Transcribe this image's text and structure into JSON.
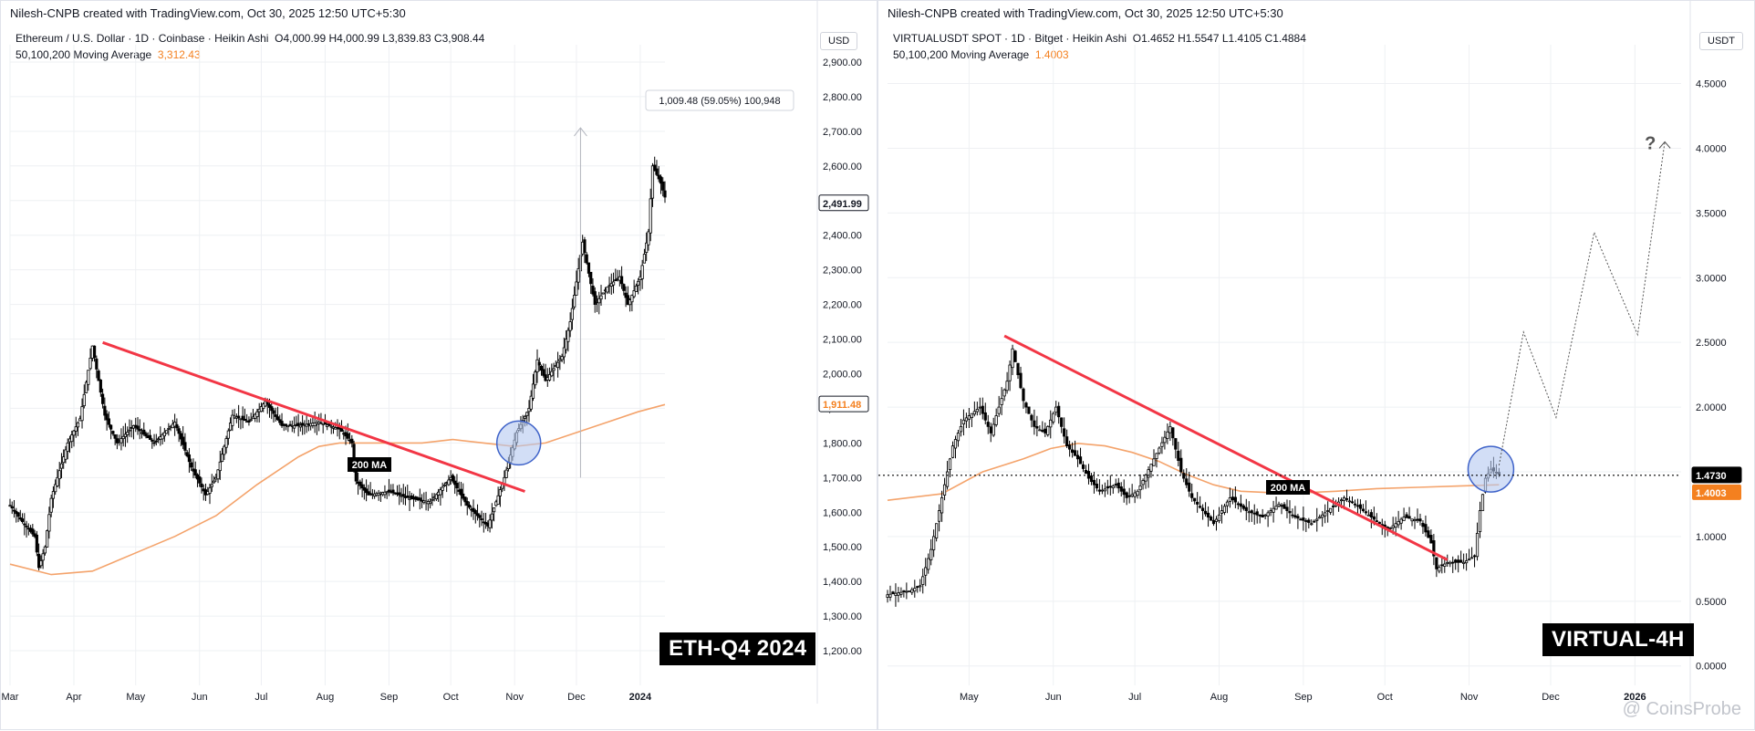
{
  "colors": {
    "candle": "#000000",
    "trendline": "#f23645",
    "ma": "#f4a36b",
    "circle_fill": "#b4c8f0",
    "circle_stroke": "#3f63c9",
    "grid": "#eef0f3",
    "axis_text": "#131722"
  },
  "watermark": "@ CoinsProbe",
  "chart_data": [
    {
      "type": "candlestick",
      "credit": "Nilesh-CNPB created with TradingView.com, Oct 30, 2025 12:50 UTC+5:30",
      "title": "Ethereum / U.S. Dollar · 1D · Coinbase · Heikin Ashi",
      "ohlc": "O4,000.99 H4,000.99 L3,839.83 C3,908.44",
      "ma_label": "50,100,200 Moving Average",
      "ma_value": "3,312.43",
      "currency": "USD",
      "corner_label": "ETH-Q4 2024",
      "annotation_label": "200 MA",
      "measure_label": "1,009.48 (59.05%) 100,948",
      "price_tag": "2,491.99",
      "ma_tag": "1,911.48",
      "ylim": [
        1100,
        2950
      ],
      "y_ticks": [
        1200,
        1300,
        1400,
        1500,
        1600,
        1700,
        1800,
        1900,
        2000,
        2100,
        2200,
        2300,
        2400,
        2500,
        2600,
        2700,
        2800,
        2900
      ],
      "y_tick_labels": [
        "1,200.00",
        "1,300.00",
        "1,400.00",
        "1,500.00",
        "1,600.00",
        "1,700.00",
        "1,800.00",
        "1,900.00",
        "2,000.00",
        "2,100.00",
        "2,200.00",
        "2,300.00",
        "2,400.00",
        "2,500.00",
        "2,600.00",
        "2,700.00",
        "2,800.00",
        "2,900.00"
      ],
      "x_labels": [
        "Mar",
        "Apr",
        "May",
        "Jun",
        "Jul",
        "Aug",
        "Sep",
        "Oct",
        "Nov",
        "Dec",
        "2024"
      ],
      "x_label_days": [
        0,
        31,
        61,
        92,
        122,
        153,
        184,
        214,
        245,
        275,
        306
      ],
      "x_domain": [
        0,
        318
      ],
      "price_path": [
        [
          0,
          1620
        ],
        [
          5,
          1580
        ],
        [
          12,
          1530
        ],
        [
          14,
          1440
        ],
        [
          17,
          1500
        ],
        [
          20,
          1640
        ],
        [
          28,
          1800
        ],
        [
          34,
          1870
        ],
        [
          40,
          2080
        ],
        [
          46,
          1880
        ],
        [
          52,
          1800
        ],
        [
          60,
          1850
        ],
        [
          70,
          1800
        ],
        [
          80,
          1860
        ],
        [
          88,
          1730
        ],
        [
          95,
          1650
        ],
        [
          100,
          1700
        ],
        [
          108,
          1880
        ],
        [
          116,
          1860
        ],
        [
          124,
          1920
        ],
        [
          132,
          1850
        ],
        [
          140,
          1850
        ],
        [
          150,
          1860
        ],
        [
          160,
          1840
        ],
        [
          166,
          1800
        ],
        [
          168,
          1690
        ],
        [
          174,
          1650
        ],
        [
          184,
          1660
        ],
        [
          194,
          1640
        ],
        [
          204,
          1630
        ],
        [
          214,
          1700
        ],
        [
          222,
          1620
        ],
        [
          232,
          1560
        ],
        [
          240,
          1700
        ],
        [
          246,
          1830
        ],
        [
          252,
          1900
        ],
        [
          256,
          2040
        ],
        [
          260,
          1980
        ],
        [
          268,
          2050
        ],
        [
          272,
          2150
        ],
        [
          278,
          2380
        ],
        [
          284,
          2200
        ],
        [
          290,
          2250
        ],
        [
          296,
          2280
        ],
        [
          300,
          2200
        ],
        [
          306,
          2280
        ],
        [
          310,
          2410
        ],
        [
          312,
          2600
        ],
        [
          316,
          2550
        ],
        [
          318,
          2510
        ]
      ],
      "ma_200": [
        [
          0,
          1450
        ],
        [
          20,
          1420
        ],
        [
          40,
          1430
        ],
        [
          60,
          1480
        ],
        [
          80,
          1530
        ],
        [
          100,
          1590
        ],
        [
          120,
          1680
        ],
        [
          140,
          1760
        ],
        [
          150,
          1790
        ],
        [
          160,
          1800
        ],
        [
          180,
          1800
        ],
        [
          200,
          1800
        ],
        [
          215,
          1810
        ],
        [
          230,
          1800
        ],
        [
          245,
          1790
        ],
        [
          260,
          1800
        ],
        [
          275,
          1830
        ],
        [
          290,
          1860
        ],
        [
          305,
          1890
        ],
        [
          318,
          1911
        ]
      ],
      "trendline": [
        [
          45,
          2090
        ],
        [
          250,
          1660
        ]
      ],
      "circle": {
        "day": 247,
        "price": 1800,
        "r": 24
      },
      "measure": {
        "day": 277,
        "from": 1700,
        "to": 2710
      }
    },
    {
      "type": "candlestick",
      "credit": "Nilesh-CNPB created with TradingView.com, Oct 30, 2025 12:50 UTC+5:30",
      "title": "VIRTUALUSDT SPOT · 1D · Bitget · Heikin Ashi",
      "ohlc": "O1.4652 H1.5547 L1.4105 C1.4884",
      "ma_label": "50,100,200 Moving Average",
      "ma_value": "1.4003",
      "currency": "USDT",
      "corner_label": "VIRTUAL-4H",
      "annotation_label": "200 MA",
      "question_mark": "?",
      "price_tag": "1.4730",
      "ma_tag": "1.4003",
      "ylim": [
        -0.15,
        4.8
      ],
      "y_ticks": [
        0,
        0.5,
        1,
        1.5,
        2,
        2.5,
        3,
        3.5,
        4,
        4.5
      ],
      "y_tick_labels": [
        "0.0000",
        "0.5000",
        "1.0000",
        "1.5000",
        "2.0000",
        "2.5000",
        "3.0000",
        "3.5000",
        "4.0000",
        "4.5000"
      ],
      "x_labels": [
        "May",
        "Jun",
        "Jul",
        "Aug",
        "Sep",
        "Oct",
        "Nov",
        "Dec",
        "2026"
      ],
      "x_label_days": [
        30,
        61,
        91,
        122,
        153,
        183,
        214,
        244,
        275
      ],
      "x_domain": [
        0,
        292
      ],
      "price_path": [
        [
          0,
          0.55
        ],
        [
          8,
          0.58
        ],
        [
          12,
          0.62
        ],
        [
          16,
          0.9
        ],
        [
          20,
          1.3
        ],
        [
          24,
          1.7
        ],
        [
          28,
          1.9
        ],
        [
          34,
          2.0
        ],
        [
          38,
          1.8
        ],
        [
          44,
          2.2
        ],
        [
          46,
          2.45
        ],
        [
          50,
          2.05
        ],
        [
          54,
          1.85
        ],
        [
          58,
          1.8
        ],
        [
          62,
          2.0
        ],
        [
          66,
          1.7
        ],
        [
          70,
          1.6
        ],
        [
          74,
          1.45
        ],
        [
          78,
          1.35
        ],
        [
          84,
          1.4
        ],
        [
          88,
          1.3
        ],
        [
          92,
          1.35
        ],
        [
          98,
          1.6
        ],
        [
          104,
          1.85
        ],
        [
          108,
          1.5
        ],
        [
          112,
          1.3
        ],
        [
          116,
          1.2
        ],
        [
          120,
          1.1
        ],
        [
          126,
          1.3
        ],
        [
          132,
          1.2
        ],
        [
          138,
          1.15
        ],
        [
          144,
          1.25
        ],
        [
          150,
          1.15
        ],
        [
          156,
          1.1
        ],
        [
          162,
          1.2
        ],
        [
          168,
          1.3
        ],
        [
          172,
          1.25
        ],
        [
          178,
          1.15
        ],
        [
          184,
          1.05
        ],
        [
          190,
          1.15
        ],
        [
          196,
          1.12
        ],
        [
          200,
          0.95
        ],
        [
          202,
          0.75
        ],
        [
          206,
          0.8
        ],
        [
          212,
          0.8
        ],
        [
          216,
          0.85
        ],
        [
          218,
          1.2
        ],
        [
          220,
          1.45
        ],
        [
          222,
          1.52
        ],
        [
          225,
          1.48
        ]
      ],
      "ma_200": [
        [
          0,
          1.28
        ],
        [
          20,
          1.33
        ],
        [
          35,
          1.5
        ],
        [
          50,
          1.6
        ],
        [
          60,
          1.68
        ],
        [
          70,
          1.72
        ],
        [
          80,
          1.7
        ],
        [
          90,
          1.65
        ],
        [
          100,
          1.58
        ],
        [
          110,
          1.48
        ],
        [
          120,
          1.4
        ],
        [
          130,
          1.35
        ],
        [
          140,
          1.34
        ],
        [
          155,
          1.34
        ],
        [
          165,
          1.35
        ],
        [
          180,
          1.37
        ],
        [
          195,
          1.38
        ],
        [
          210,
          1.39
        ],
        [
          225,
          1.4
        ]
      ],
      "trendline": [
        [
          43,
          2.55
        ],
        [
          206,
          0.82
        ]
      ],
      "circle": {
        "day": 222,
        "price": 1.52,
        "r": 25
      },
      "horizontal_level": 1.473,
      "projection": [
        [
          225,
          1.55
        ],
        [
          234,
          2.58
        ],
        [
          246,
          1.92
        ],
        [
          260,
          3.35
        ],
        [
          276,
          2.56
        ],
        [
          286,
          4.05
        ]
      ]
    }
  ]
}
